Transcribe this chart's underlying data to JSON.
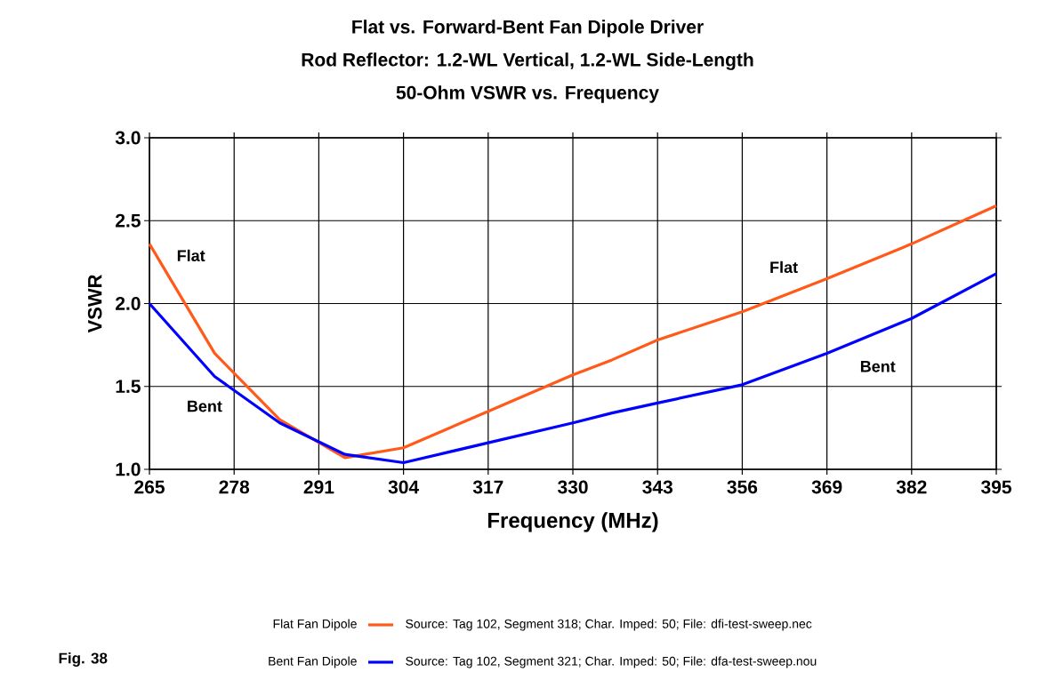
{
  "chart_data": {
    "type": "line",
    "title": "Flat vs. Forward-Bent Fan Dipole Driver\nRod Reflector: 1.2-WL Vertical, 1.2-WL Side-Length\n50-Ohm VSWR vs. Frequency",
    "xlabel": "Frequency (MHz)",
    "ylabel": "VSWR",
    "xlim": [
      265,
      395
    ],
    "xticks": [
      265,
      278,
      291,
      304,
      317,
      330,
      343,
      356,
      369,
      382,
      395
    ],
    "ylim": [
      1.0,
      3.0
    ],
    "yticks": [
      {
        "value": 1.0,
        "label": "1.0"
      },
      {
        "value": 1.5,
        "label": "1.5"
      },
      {
        "value": 2.0,
        "label": "2.0"
      },
      {
        "value": 2.5,
        "label": "2.5"
      },
      {
        "value": 3.0,
        "label": "3.0"
      }
    ],
    "grid": true,
    "legend": "bottom",
    "marker": "none",
    "line_style": "solid",
    "series": [
      {
        "name": "Flat Fan Dipole",
        "color": "#ff5a1a",
        "x": [
          265,
          275,
          285,
          295,
          304,
          317,
          330,
          336,
          343,
          356,
          369,
          382,
          395
        ],
        "values": [
          2.36,
          1.7,
          1.3,
          1.07,
          1.13,
          1.35,
          1.57,
          1.66,
          1.78,
          1.95,
          2.15,
          2.36,
          2.59
        ]
      },
      {
        "name": "Bent Fan Dipole",
        "color": "#0000ff",
        "x": [
          265,
          275,
          285,
          295,
          304,
          317,
          330,
          336,
          343,
          356,
          369,
          382,
          395
        ],
        "values": [
          2.0,
          1.56,
          1.28,
          1.09,
          1.04,
          1.16,
          1.28,
          1.34,
          1.4,
          1.51,
          1.7,
          1.91,
          2.18
        ]
      }
    ],
    "annotations": [
      "Flat",
      "Bent",
      "Flat",
      "Bent",
      "Source: Tag 102, Segment 318; Char. Imped: 50; File: dfi-test-sweep.nec",
      "Source: Tag 102, Segment 321; Char. Imped: 50; File: dfa-test-sweep.nou",
      "Fig. 38"
    ]
  }
}
